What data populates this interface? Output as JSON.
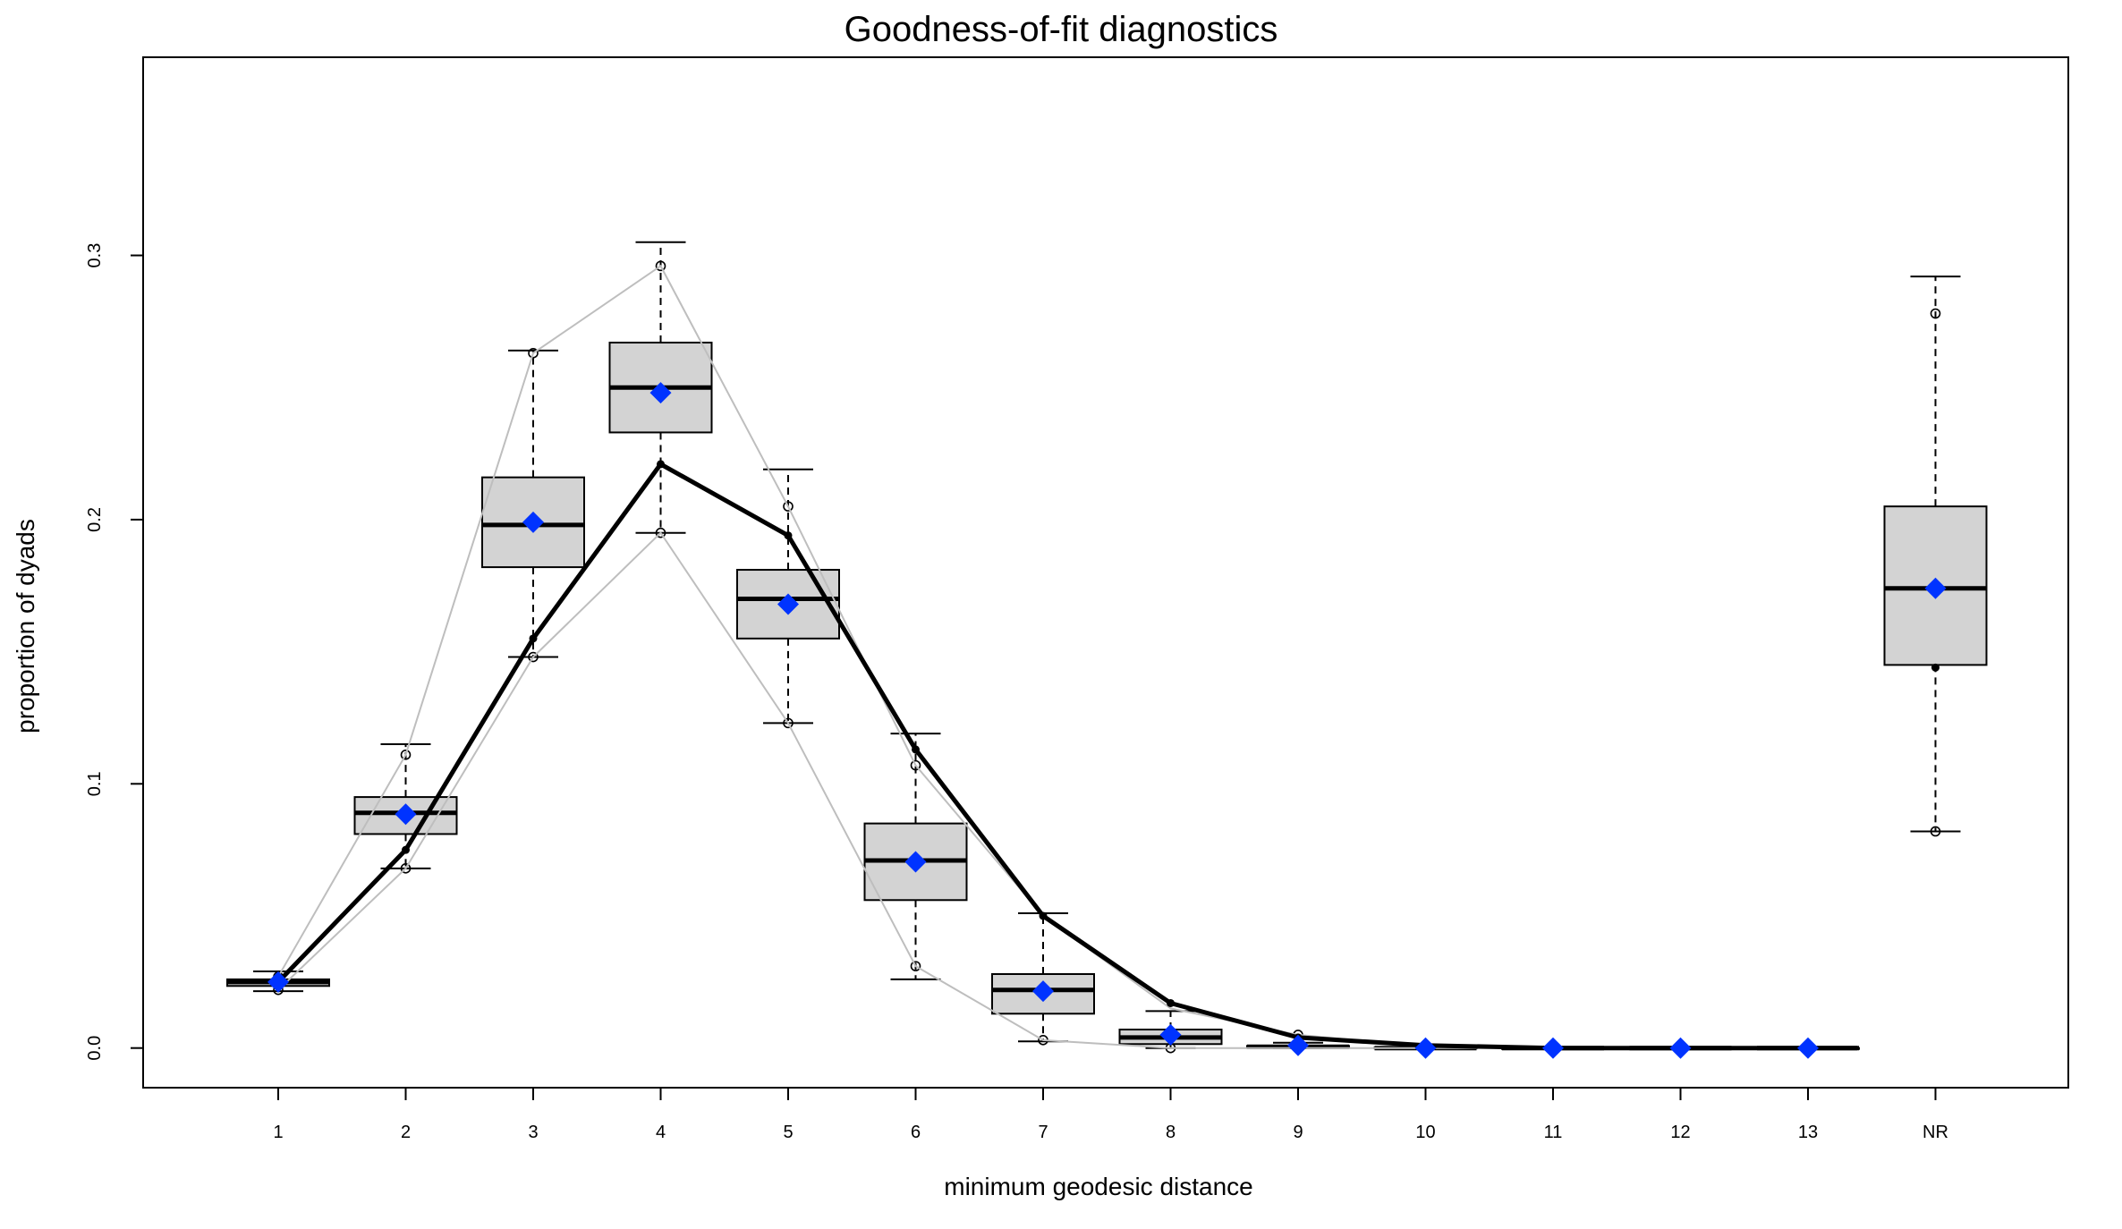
{
  "chart_data": {
    "type": "boxplot",
    "title": "Goodness-of-fit diagnostics",
    "xlabel": "minimum geodesic distance",
    "ylabel": "proportion of dyads",
    "categories": [
      "1",
      "2",
      "3",
      "4",
      "5",
      "6",
      "7",
      "8",
      "9",
      "10",
      "11",
      "12",
      "13",
      "NR"
    ],
    "ylim": [
      -0.015,
      0.375
    ],
    "yticks": [
      0.0,
      0.1,
      0.2,
      0.3
    ],
    "ytick_labels": [
      "0.0",
      "0.1",
      "0.2",
      "0.3"
    ],
    "colors": {
      "box_fill": "#d3d3d3",
      "observed": "#000000",
      "mean_marker": "#0033ff",
      "ci_lines": "#bebebe"
    },
    "boxes": [
      {
        "cat": "1",
        "wlo": 0.0215,
        "q1": 0.0235,
        "med": 0.025,
        "q3": 0.026,
        "whi": 0.029,
        "out": [
          0.022,
          0.027
        ]
      },
      {
        "cat": "2",
        "wlo": 0.068,
        "q1": 0.081,
        "med": 0.089,
        "q3": 0.095,
        "whi": 0.115,
        "out": [
          0.068,
          0.111
        ]
      },
      {
        "cat": "3",
        "wlo": 0.148,
        "q1": 0.182,
        "med": 0.198,
        "q3": 0.216,
        "whi": 0.264,
        "out": [
          0.148,
          0.263
        ]
      },
      {
        "cat": "4",
        "wlo": 0.195,
        "q1": 0.233,
        "med": 0.25,
        "q3": 0.267,
        "whi": 0.305,
        "out": [
          0.195,
          0.296
        ]
      },
      {
        "cat": "5",
        "wlo": 0.123,
        "q1": 0.155,
        "med": 0.17,
        "q3": 0.181,
        "whi": 0.219,
        "out": [
          0.123,
          0.205
        ]
      },
      {
        "cat": "6",
        "wlo": 0.026,
        "q1": 0.056,
        "med": 0.071,
        "q3": 0.085,
        "whi": 0.119,
        "out": [
          0.031,
          0.107
        ]
      },
      {
        "cat": "7",
        "wlo": 0.0025,
        "q1": 0.013,
        "med": 0.022,
        "q3": 0.028,
        "whi": 0.051,
        "out": [
          0.003
        ]
      },
      {
        "cat": "8",
        "wlo": 0.0,
        "q1": 0.0015,
        "med": 0.004,
        "q3": 0.007,
        "whi": 0.014,
        "out": [
          0.0
        ]
      },
      {
        "cat": "9",
        "wlo": 0.0,
        "q1": 0.0,
        "med": 0.0005,
        "q3": 0.0008,
        "whi": 0.002,
        "out": [
          0.005
        ]
      },
      {
        "cat": "10",
        "wlo": 0.0,
        "q1": 0.0,
        "med": 0.0,
        "q3": 0.0002,
        "whi": 0.0005,
        "out": []
      },
      {
        "cat": "11",
        "wlo": 0.0,
        "q1": 0.0,
        "med": 0.0,
        "q3": 0.0,
        "whi": 0.0,
        "out": []
      },
      {
        "cat": "12",
        "wlo": 0.0,
        "q1": 0.0,
        "med": 0.0,
        "q3": 0.0,
        "whi": 0.0,
        "out": []
      },
      {
        "cat": "13",
        "wlo": 0.0,
        "q1": 0.0,
        "med": 0.0,
        "q3": 0.0,
        "whi": 0.0,
        "out": []
      },
      {
        "cat": "NR",
        "wlo": 0.082,
        "q1": 0.145,
        "med": 0.174,
        "q3": 0.205,
        "whi": 0.292,
        "out": [
          0.082,
          0.278
        ]
      }
    ],
    "series": [
      {
        "values": [
          0.025,
          0.075,
          0.155,
          0.221,
          0.194,
          0.113,
          0.05,
          0.017,
          0.004,
          0.001,
          0.0,
          0.0,
          0.0,
          0.144
        ]
      },
      {
        "values": [
          0.025,
          0.0885,
          0.199,
          0.248,
          0.168,
          0.0705,
          0.0215,
          0.005,
          0.001,
          0.0,
          0.0,
          0.0,
          0.0,
          0.174
        ]
      },
      {
        "values": [
          0.022,
          0.068,
          0.148,
          0.195,
          0.123,
          0.031,
          0.003,
          0.0,
          0.0,
          0.0,
          0.0,
          0.0,
          0.0
        ]
      },
      {
        "values": [
          0.027,
          0.111,
          0.263,
          0.296,
          0.205,
          0.107,
          0.05,
          0.015,
          0.005,
          0.0005,
          0.0,
          0.0,
          0.0
        ]
      }
    ]
  }
}
